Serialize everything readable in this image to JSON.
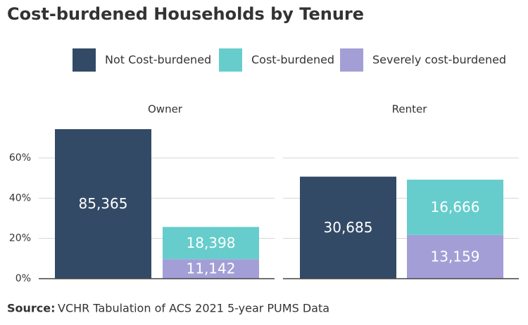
{
  "chart_data": {
    "type": "bar",
    "title": "Cost-burdened Households by Tenure",
    "source_label": "Source:",
    "source": "VCHR Tabulation of ACS 2021 5-year PUMS Data",
    "facets": [
      "Owner",
      "Renter"
    ],
    "series": [
      {
        "name": "Not Cost-burdened",
        "color": "#324a66",
        "values": [
          74.3,
          50.7
        ],
        "count_labels": [
          "85,365",
          "30,685"
        ]
      },
      {
        "name": "Cost-burdened",
        "color": "#66cdcc",
        "values": [
          16.0,
          27.5
        ],
        "count_labels": [
          "18,398",
          "16,666"
        ]
      },
      {
        "name": "Severely cost-burdened",
        "color": "#a39fd6",
        "values": [
          9.7,
          21.7
        ],
        "count_labels": [
          "11,142",
          "13,159"
        ]
      }
    ],
    "ylim": [
      0,
      79
    ],
    "yticks": [
      {
        "value": 0,
        "label": "0%"
      },
      {
        "value": 20,
        "label": "20%"
      },
      {
        "value": 40,
        "label": "40%"
      },
      {
        "value": 60,
        "label": "60%"
      }
    ],
    "grid": true
  }
}
